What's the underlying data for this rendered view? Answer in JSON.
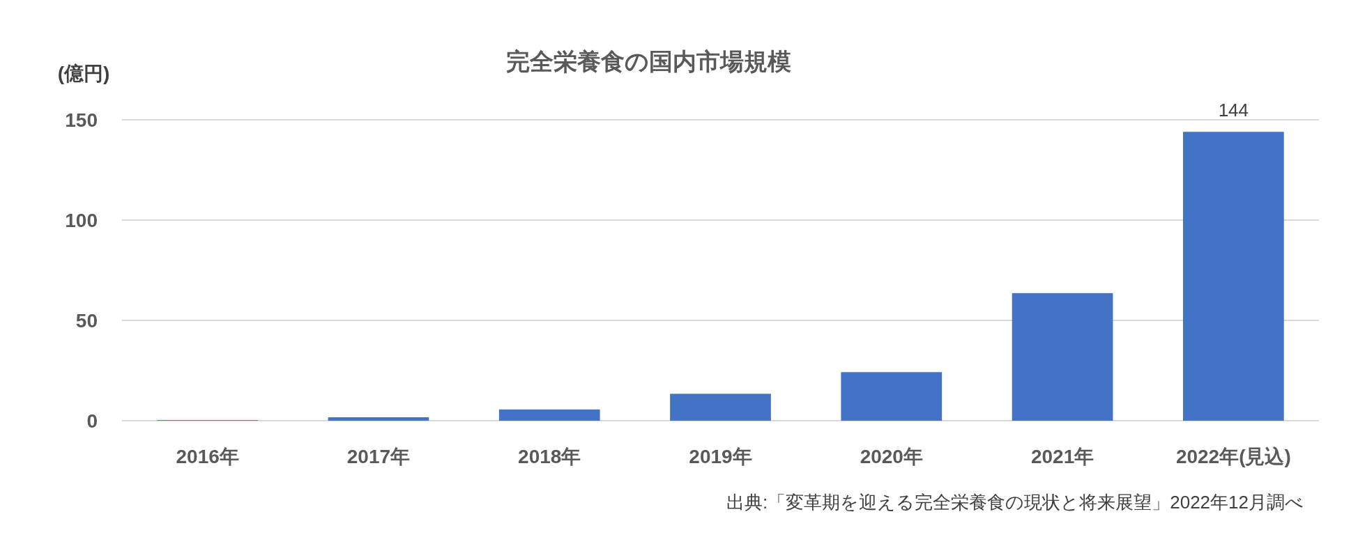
{
  "chart_data": {
    "type": "bar",
    "title": "完全栄養食の国内市場規模",
    "ylabel": "(億円)",
    "categories": [
      "2016年",
      "2017年",
      "2018年",
      "2019年",
      "2020年",
      "2021年",
      "2022年(見込)"
    ],
    "values": [
      0.3,
      1.7,
      5.6,
      13.4,
      24.2,
      63.6,
      144
    ],
    "value_labels": [
      null,
      null,
      null,
      null,
      null,
      null,
      "144"
    ],
    "color": "#4472c4",
    "ylim": [
      0,
      150
    ],
    "yticks": [
      0,
      50,
      100,
      150
    ],
    "grid": "y",
    "annotations": [
      "出典:「変革期を迎える完全栄養食の現状と将来展望」2022年12月調べ"
    ]
  }
}
